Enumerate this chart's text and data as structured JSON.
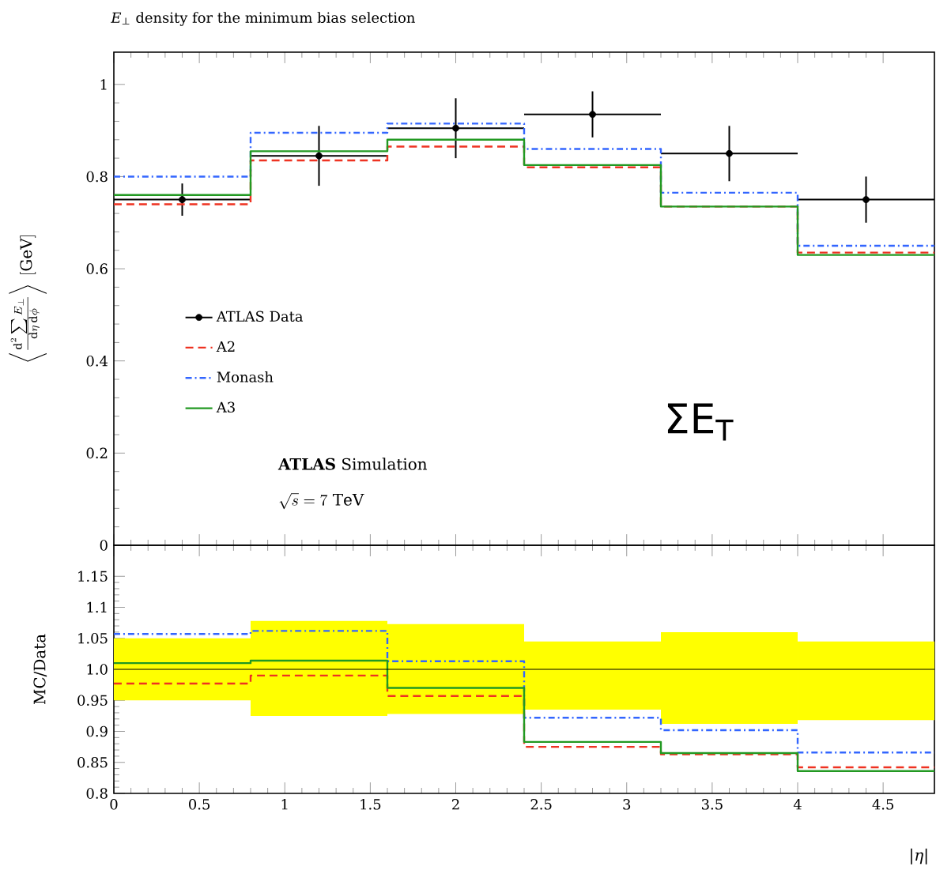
{
  "chart_data": [
    {
      "type": "histogram",
      "title": "*E*$_{⊥}$ density for the minimum bias selection",
      "ylabel": "\\left\\langle \\frac{\\mathrm{d}^2\\sum E_\\perp}{\\mathrm{d}\\eta\\,\\mathrm{d}\\phi}\\right\\rangle\\ [\\mathrm{GeV}]",
      "bins": [
        0,
        0.8,
        1.6,
        2.4,
        3.2,
        4.0,
        4.8
      ],
      "series": [
        {
          "name": "ATLAS Data",
          "type": "scatter",
          "color": "#000000",
          "marker": "circle",
          "x": [
            0.4,
            1.2,
            2.0,
            2.8,
            3.6,
            4.4
          ],
          "values": [
            0.75,
            0.845,
            0.905,
            0.935,
            0.85,
            0.75
          ],
          "errors": [
            0.035,
            0.065,
            0.065,
            0.05,
            0.06,
            0.05
          ],
          "xerrors": [
            0.4,
            0.4,
            0.4,
            0.4,
            0.4,
            0.4
          ]
        },
        {
          "name": "A2",
          "color": "#ee3322",
          "line_style": "dashed",
          "values": [
            0.74,
            0.835,
            0.865,
            0.82,
            0.735,
            0.635
          ]
        },
        {
          "name": "Monash",
          "color": "#3366ff",
          "line_style": "dashdot",
          "values": [
            0.8,
            0.895,
            0.915,
            0.86,
            0.765,
            0.65
          ]
        },
        {
          "name": "A3",
          "color": "#229922",
          "line_style": "solid",
          "values": [
            0.76,
            0.855,
            0.88,
            0.825,
            0.735,
            0.63
          ]
        }
      ],
      "xlim": [
        0,
        4.8
      ],
      "xticks": [
        0,
        0.5,
        1,
        1.5,
        2,
        2.5,
        3,
        3.5,
        4,
        4.5
      ],
      "ylim": [
        0,
        1.07
      ],
      "yticks": [
        0,
        0.2,
        0.4,
        0.6,
        0.8,
        1
      ],
      "tick_labels": "y",
      "legend": "left",
      "annotations": [
        "ΣE$_{T}$",
        "**ATLAS** Simulation",
        "\\sqrt{s} = 7\\ \\mathrm{TeV}"
      ]
    },
    {
      "type": "histogram",
      "xlabel": "|*η*|",
      "ylabel": "MC/Data",
      "bins": [
        0,
        0.8,
        1.6,
        2.4,
        3.2,
        4.0,
        4.8
      ],
      "series": [
        {
          "type": "bar",
          "color": "#ffff00",
          "x": [
            0.4,
            1.2,
            2.0,
            2.8,
            3.6,
            4.4
          ],
          "base": [
            0.95,
            0.925,
            0.928,
            0.935,
            0.912,
            0.918
          ],
          "values": [
            0.1,
            0.153,
            0.145,
            0.11,
            0.148,
            0.127
          ]
        },
        {
          "color": "#ee3322",
          "line_style": "dashed",
          "values": [
            0.977,
            0.99,
            0.957,
            0.875,
            0.863,
            0.842
          ]
        },
        {
          "color": "#3366ff",
          "line_style": "dashdot",
          "values": [
            1.057,
            1.062,
            1.013,
            0.922,
            0.902,
            0.866
          ]
        },
        {
          "color": "#229922",
          "line_style": "solid",
          "values": [
            1.01,
            1.014,
            0.97,
            0.883,
            0.865,
            0.836
          ]
        }
      ],
      "ref_lines": [
        {
          "axis": "y",
          "value": 1,
          "color": "#000000"
        }
      ],
      "xlim": [
        0,
        4.8
      ],
      "xticks": [
        0,
        0.5,
        1,
        1.5,
        2,
        2.5,
        3,
        3.5,
        4,
        4.5
      ],
      "ylim": [
        0.8,
        1.2
      ],
      "yticks": [
        0.8,
        0.85,
        0.9,
        0.95,
        {
          "value": 1,
          "label": "1.0"
        },
        1.05,
        1.1,
        1.15
      ]
    }
  ]
}
